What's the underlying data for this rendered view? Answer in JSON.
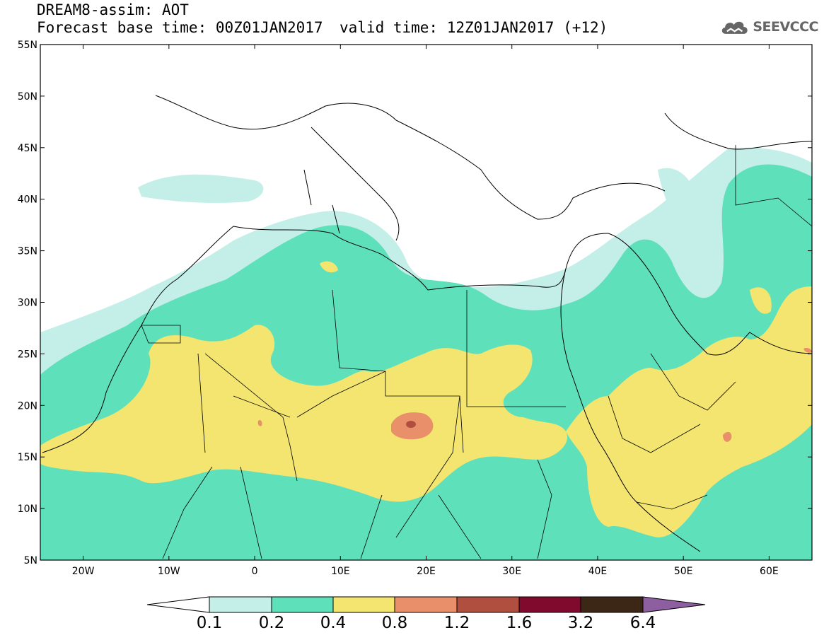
{
  "title": {
    "line1": "DREAM8-assim: AOT",
    "line2": "Forecast base time: 00Z01JAN2017",
    "valid": "valid time: 12Z01JAN2017 (+12)"
  },
  "logo": {
    "text": "SEEVCCC",
    "icon": "cloud-icon"
  },
  "map": {
    "lon_range": [
      -25,
      65
    ],
    "lat_range": [
      5,
      55
    ],
    "lat_labels": [
      "55N",
      "50N",
      "45N",
      "40N",
      "35N",
      "30N",
      "25N",
      "20N",
      "15N",
      "10N",
      "5N"
    ],
    "lon_labels": [
      "20W",
      "10W",
      "0",
      "10E",
      "20E",
      "30E",
      "40E",
      "50E",
      "60E"
    ]
  },
  "colorbar": {
    "labels": [
      "0.1",
      "0.2",
      "0.4",
      "0.8",
      "1.2",
      "1.6",
      "3.2",
      "6.4"
    ],
    "colors": [
      "#c4efe9",
      "#5ee0bb",
      "#f3e570",
      "#e9906b",
      "#b04e40",
      "#800a2e",
      "#3c2716",
      "#8d5fa0"
    ],
    "under_color": "#ffffff"
  },
  "colors": {
    "c01": "#c4efe9",
    "c02": "#5ee0bb",
    "c04": "#f3e570",
    "c08": "#e9906b",
    "c12": "#b04e40",
    "line": "#000000"
  }
}
